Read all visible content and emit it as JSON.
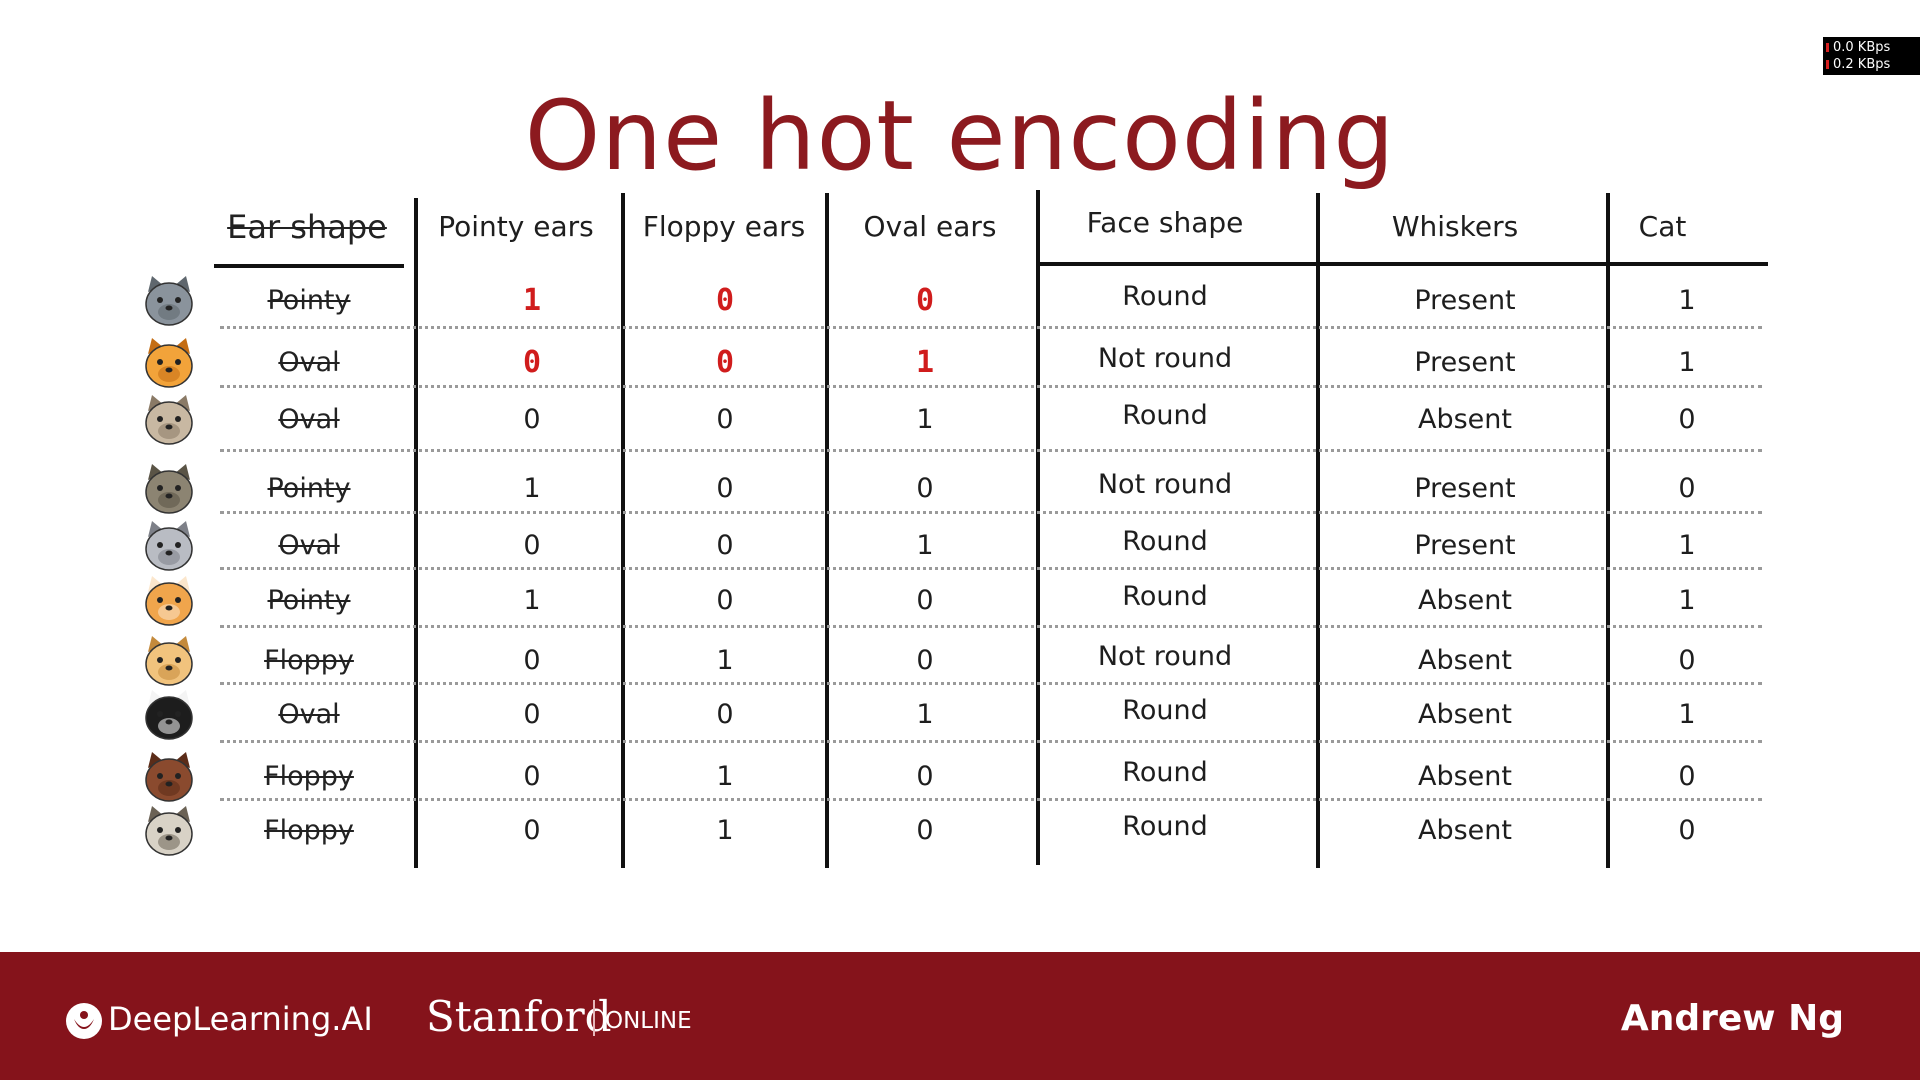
{
  "network": {
    "down": "0.0 KBps",
    "up": "0.2 KBps"
  },
  "title": "One hot encoding",
  "table": {
    "headers": {
      "ear_shape": "Ear shape",
      "pointy": "Pointy ears",
      "floppy": "Floppy ears",
      "oval": "Oval ears",
      "face": "Face shape",
      "whiskers": "Whiskers",
      "cat": "Cat"
    },
    "rows": [
      {
        "animal": "gray-cat-icon",
        "ear": "Pointy",
        "pointy": "1",
        "floppy": "0",
        "oval": "0",
        "face": "Round",
        "whiskers": "Present",
        "cat": "1"
      },
      {
        "animal": "orange-cat-icon",
        "ear": "Oval",
        "pointy": "0",
        "floppy": "0",
        "oval": "1",
        "face": "Not round",
        "whiskers": "Present",
        "cat": "1"
      },
      {
        "animal": "tan-dog-icon",
        "ear": "Oval",
        "pointy": "0",
        "floppy": "0",
        "oval": "1",
        "face": "Round",
        "whiskers": "Absent",
        "cat": "0"
      },
      {
        "animal": "wolf-icon",
        "ear": "Pointy",
        "pointy": "1",
        "floppy": "0",
        "oval": "0",
        "face": "Not round",
        "whiskers": "Present",
        "cat": "0"
      },
      {
        "animal": "silver-cat-icon",
        "ear": "Oval",
        "pointy": "0",
        "floppy": "0",
        "oval": "1",
        "face": "Round",
        "whiskers": "Present",
        "cat": "1"
      },
      {
        "animal": "orange-white-cat-icon",
        "ear": "Pointy",
        "pointy": "1",
        "floppy": "0",
        "oval": "0",
        "face": "Round",
        "whiskers": "Absent",
        "cat": "1"
      },
      {
        "animal": "golden-dog-icon",
        "ear": "Floppy",
        "pointy": "0",
        "floppy": "1",
        "oval": "0",
        "face": "Not round",
        "whiskers": "Absent",
        "cat": "0"
      },
      {
        "animal": "black-white-cat-icon",
        "ear": "Oval",
        "pointy": "0",
        "floppy": "0",
        "oval": "1",
        "face": "Round",
        "whiskers": "Absent",
        "cat": "1"
      },
      {
        "animal": "brown-dog-icon",
        "ear": "Floppy",
        "pointy": "0",
        "floppy": "1",
        "oval": "0",
        "face": "Round",
        "whiskers": "Absent",
        "cat": "0"
      },
      {
        "animal": "pug-icon",
        "ear": "Floppy",
        "pointy": "0",
        "floppy": "1",
        "oval": "0",
        "face": "Round",
        "whiskers": "Absent",
        "cat": "0"
      }
    ]
  },
  "footer": {
    "deeplearning": "DeepLearning.AI",
    "stanford": "Stanford",
    "online": "ONLINE",
    "author": "Andrew Ng"
  },
  "colors": {
    "title": "#8c1a1f",
    "footer": "#85131b",
    "handwritten": "#d01c1c"
  }
}
